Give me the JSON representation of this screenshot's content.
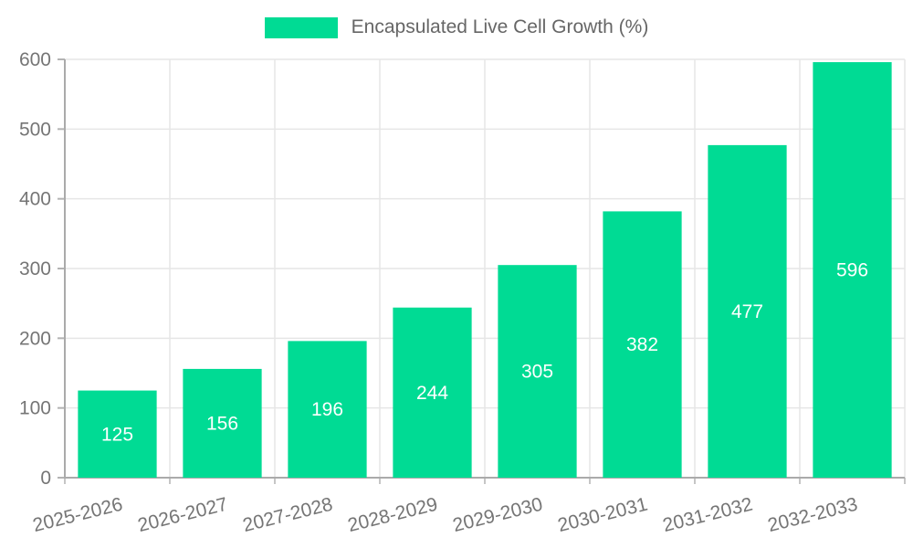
{
  "chart_data": {
    "type": "bar",
    "title": "",
    "series_name": "Encapsulated Live Cell Growth (%)",
    "categories": [
      "2025-2026",
      "2026-2027",
      "2027-2028",
      "2028-2029",
      "2029-2030",
      "2030-2031",
      "2031-2032",
      "2032-2033"
    ],
    "values": [
      125,
      156,
      196,
      244,
      305,
      382,
      477,
      596
    ],
    "ylim": [
      0,
      600
    ],
    "ytick_step": 100,
    "ytick_labels": [
      "0",
      "100",
      "200",
      "300",
      "400",
      "500",
      "600"
    ],
    "grid": true,
    "legend_position": "top-center",
    "x_label_rotation": -14,
    "bar_width_fraction": 0.75,
    "bar_color": "#00DB94",
    "value_label_color": "#ffffff",
    "grid_color": "#e6e6e6",
    "axis_color": "#aaaaaa",
    "tick_color": "#b3b3b3",
    "tick_label_color": "#757575",
    "legend_text_color": "#666666",
    "background_color": "#ffffff"
  }
}
